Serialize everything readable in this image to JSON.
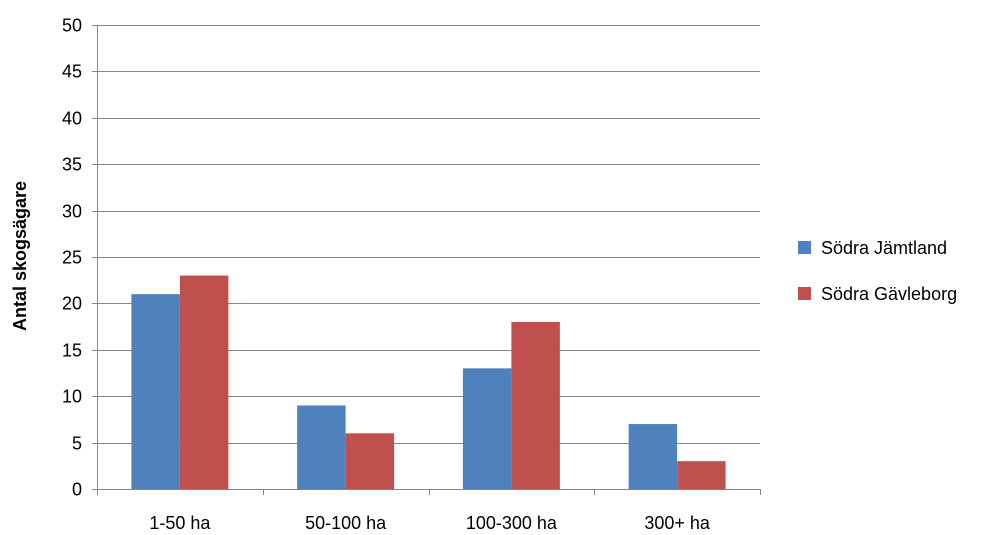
{
  "chart_data": {
    "type": "bar",
    "title": "",
    "xlabel": "",
    "ylabel": "Antal skogsägare",
    "ylim": [
      0,
      50
    ],
    "yticks": [
      0,
      5,
      10,
      15,
      20,
      25,
      30,
      35,
      40,
      45,
      50
    ],
    "categories": [
      "1-50 ha",
      "50-100 ha",
      "100-300 ha",
      "300+ ha"
    ],
    "series": [
      {
        "name": "Södra Jämtland",
        "color": "#4F81BD",
        "values": [
          21,
          9,
          13,
          7
        ]
      },
      {
        "name": "Södra Gävleborg",
        "color": "#C0504D",
        "values": [
          23,
          6,
          18,
          3
        ]
      }
    ],
    "grid": true,
    "gridline_color": "#868686",
    "legend_position": "right"
  }
}
